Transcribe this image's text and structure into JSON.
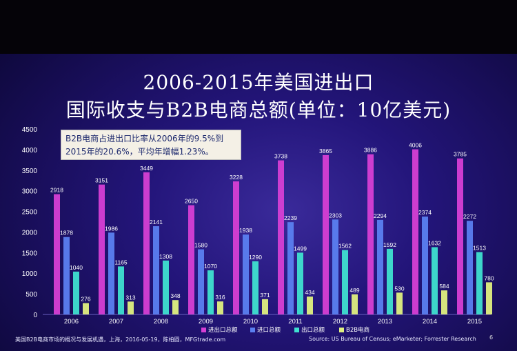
{
  "title_line1": "2006-2015年美国进出口",
  "title_line2": "国际收支与B2B电商总额(单位：10亿美元)",
  "annotation": "B2B电商占进出口比率从2006年的9.5%到2015年的20.6%，平均年增幅1.23%。",
  "footer_left": "美国B2B电商市场的概况与发展机遇，上海，2016-05-19，陈柏圆，MFGtrade.com",
  "footer_right": "Source: US Bureau of Census; eMarketer; Forrester Research",
  "page_number": "6",
  "colors": {
    "series1": "#d63fd4",
    "series2": "#5b7ff0",
    "series3": "#3fe0d0",
    "series4": "#e0f080"
  },
  "chart_data": {
    "type": "bar",
    "title": "2006-2015年美国进出口国际收支与B2B电商总额(单位：10亿美元)",
    "categories": [
      "2006",
      "2007",
      "2008",
      "2009",
      "2010",
      "2011",
      "2012",
      "2013",
      "2014",
      "2015"
    ],
    "series": [
      {
        "name": "进出口总额",
        "values": [
          2918,
          3151,
          3449,
          2650,
          3228,
          3738,
          3865,
          3886,
          4006,
          3785
        ]
      },
      {
        "name": "进口总额",
        "values": [
          1878,
          1986,
          2141,
          1580,
          1938,
          2239,
          2303,
          2294,
          2374,
          2272
        ]
      },
      {
        "name": "出口总额",
        "values": [
          1040,
          1165,
          1308,
          1070,
          1290,
          1499,
          1562,
          1592,
          1632,
          1513
        ]
      },
      {
        "name": "B2B电商",
        "values": [
          276,
          313,
          348,
          316,
          371,
          434,
          489,
          530,
          584,
          780
        ]
      }
    ],
    "yticks": [
      0,
      500,
      1000,
      1500,
      2000,
      2500,
      3000,
      3500,
      4000,
      4500
    ],
    "ylim": [
      0,
      4500
    ],
    "legend_position": "bottom-right",
    "grid": false
  }
}
